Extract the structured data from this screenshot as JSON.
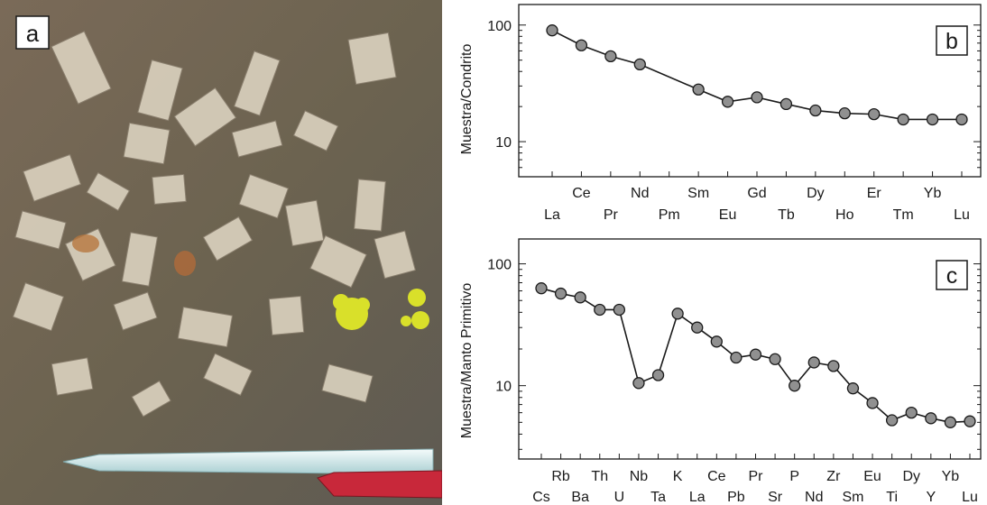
{
  "photo": {
    "panel_label": "a",
    "subject": "rock-outcrop-with-tabular-feldspar-crystals-and-pen-for-scale"
  },
  "chart_data": [
    {
      "type": "line",
      "panel_label": "b",
      "title": "",
      "xlabel": "",
      "ylabel": "Muestra/Condrito",
      "yscale": "log",
      "ylim": [
        5,
        150
      ],
      "yticks": [
        10,
        100
      ],
      "grid": false,
      "categories": [
        "La",
        "Ce",
        "Pr",
        "Nd",
        "Pm",
        "Sm",
        "Eu",
        "Gd",
        "Tb",
        "Dy",
        "Ho",
        "Er",
        "Tm",
        "Yb",
        "Lu"
      ],
      "series": [
        {
          "values": [
            90,
            67,
            54,
            46,
            null,
            28,
            22,
            24,
            21,
            18.5,
            17.5,
            17.2,
            15.5,
            15.5,
            15.5
          ]
        }
      ]
    },
    {
      "type": "line",
      "panel_label": "c",
      "title": "",
      "xlabel": "",
      "ylabel": "Muestra/Manto Primitivo",
      "yscale": "log",
      "ylim": [
        2.5,
        160
      ],
      "yticks": [
        10,
        100
      ],
      "grid": false,
      "categories": [
        "Cs",
        "Rb",
        "Ba",
        "Th",
        "U",
        "Nb",
        "Ta",
        "K",
        "La",
        "Ce",
        "Pb",
        "Pr",
        "Sr",
        "P",
        "Nd",
        "Zr",
        "Sm",
        "Eu",
        "Ti",
        "Dy",
        "Y",
        "Yb",
        "Lu"
      ],
      "series": [
        {
          "values": [
            63,
            57,
            53,
            42,
            42,
            10.5,
            12.2,
            39,
            30,
            23,
            17,
            18,
            16.5,
            10,
            15.5,
            14.5,
            9.5,
            7.2,
            5.2,
            6,
            5.4,
            5,
            5.1
          ]
        }
      ]
    }
  ],
  "colors": {
    "marker_fill": "#909090",
    "marker_stroke": "#1a1a1a",
    "line": "#1a1a1a",
    "axis": "#1a1a1a"
  }
}
